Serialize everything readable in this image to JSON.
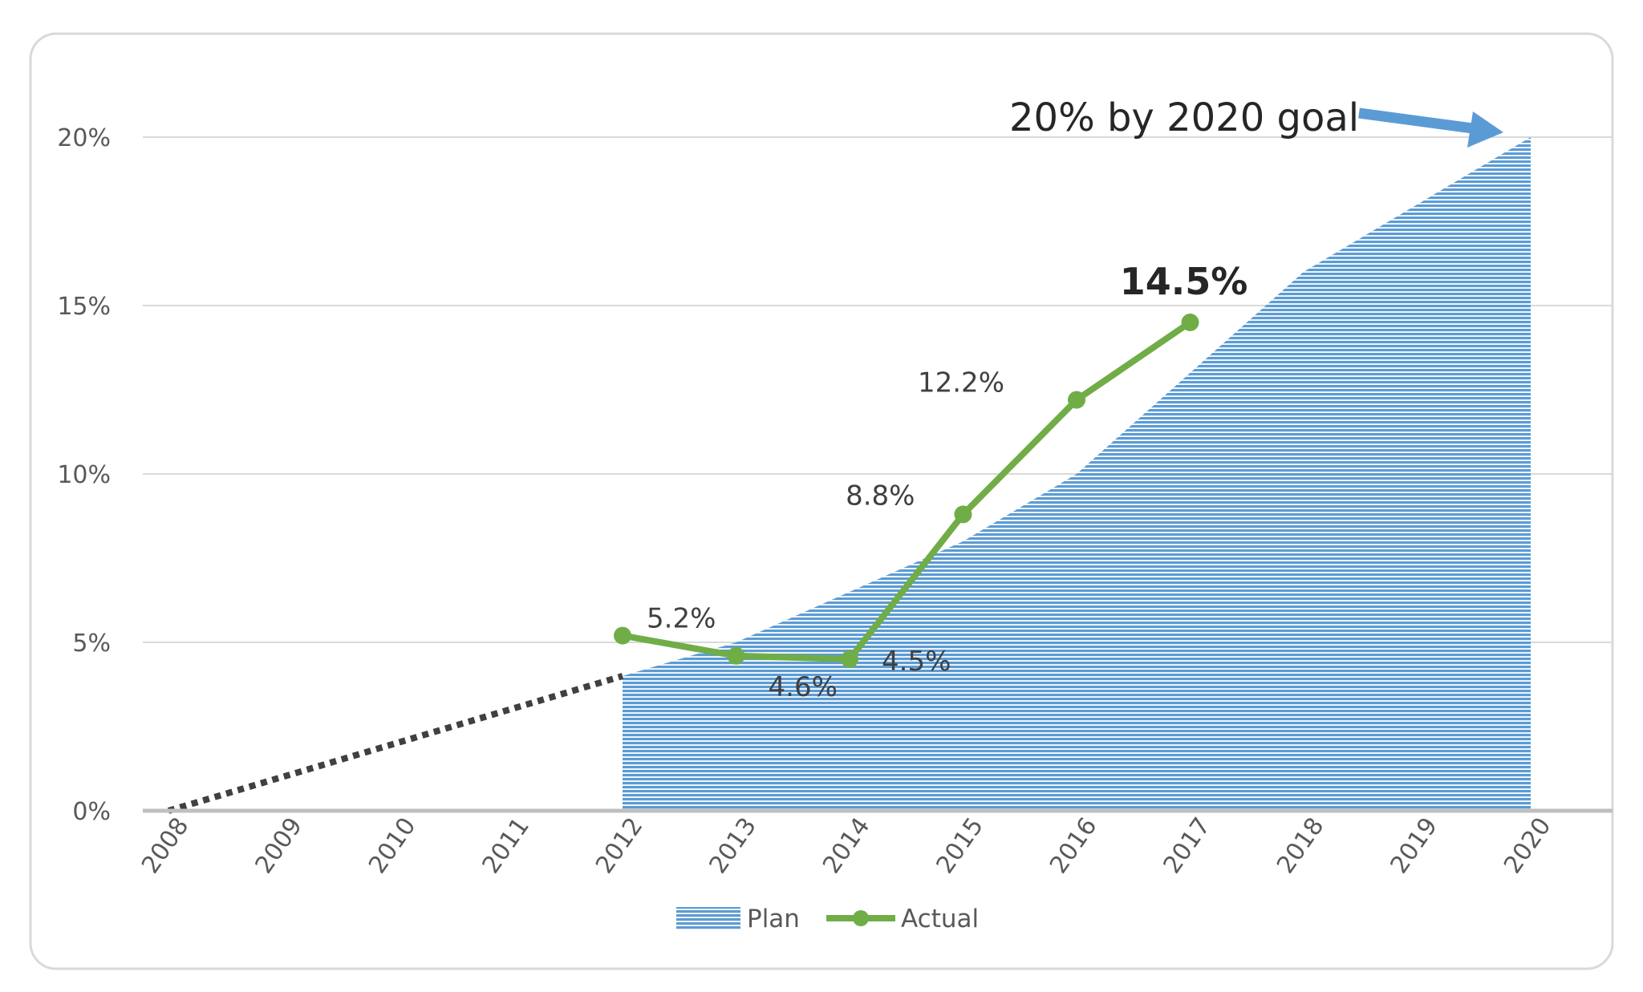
{
  "chart_data": {
    "type": "area",
    "categories": [
      "2008",
      "2009",
      "2010",
      "2011",
      "2012",
      "2013",
      "2014",
      "2015",
      "2016",
      "2017",
      "2018",
      "2019",
      "2020"
    ],
    "series": [
      {
        "name": "Plan",
        "type": "area",
        "color": "#5b9bd5",
        "x": [
          "2012",
          "2013",
          "2014",
          "2015",
          "2016",
          "2017",
          "2018",
          "2019",
          "2020"
        ],
        "values": [
          4.0,
          5.0,
          6.5,
          8.0,
          10.0,
          13.0,
          16.0,
          18.0,
          20.0
        ]
      },
      {
        "name": "Actual",
        "type": "line",
        "color": "#70ad47",
        "x": [
          "2012",
          "2013",
          "2014",
          "2015",
          "2016",
          "2017"
        ],
        "values": [
          5.2,
          4.6,
          4.5,
          8.8,
          12.2,
          14.5
        ],
        "labels": [
          "5.2%",
          "4.6%",
          "4.5%",
          "8.8%",
          "12.2%",
          "14.5%"
        ]
      },
      {
        "type": "dotted-trend",
        "color": "#404040",
        "x": [
          "2008",
          "2012"
        ],
        "values": [
          0,
          4.0
        ]
      }
    ],
    "y_ticks": [
      0,
      5,
      10,
      15,
      20
    ],
    "y_tick_labels": [
      "0%",
      "5%",
      "10%",
      "15%",
      "20%"
    ],
    "ylim": [
      0,
      20
    ],
    "grid": true,
    "legend": "bottom",
    "annotation": {
      "text": "20% by 2020 goal",
      "arrow_color": "#5b9bd5"
    }
  }
}
